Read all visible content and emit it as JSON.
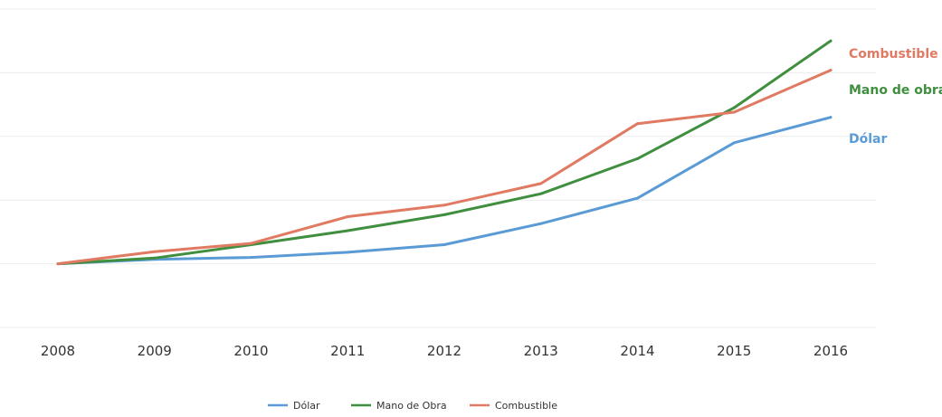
{
  "chart_data": {
    "type": "line",
    "title": "",
    "xlabel": "",
    "ylabel": "",
    "x": [
      "2008",
      "2009",
      "2010",
      "2011",
      "2012",
      "2013",
      "2014",
      "2015",
      "2016"
    ],
    "ylim": [
      -1,
      4
    ],
    "grid": true,
    "legend_position": "bottom-center",
    "series": [
      {
        "name": "Dólar",
        "end_label": "Dólar",
        "color": "#5b9bd5",
        "values": [
          0,
          0.07,
          0.1,
          0.18,
          0.3,
          0.63,
          1.03,
          1.9,
          2.3
        ]
      },
      {
        "name": "Mano de Obra",
        "end_label": "Mano de obra",
        "color": "#3f8f3f",
        "values": [
          0,
          0.09,
          0.3,
          0.52,
          0.77,
          1.1,
          1.65,
          2.45,
          3.5
        ]
      },
      {
        "name": "Combustible",
        "end_label": "Combustible",
        "color": "#e07a62",
        "values": [
          0,
          0.19,
          0.32,
          0.74,
          0.92,
          1.26,
          2.2,
          2.38,
          3.04
        ]
      }
    ]
  }
}
